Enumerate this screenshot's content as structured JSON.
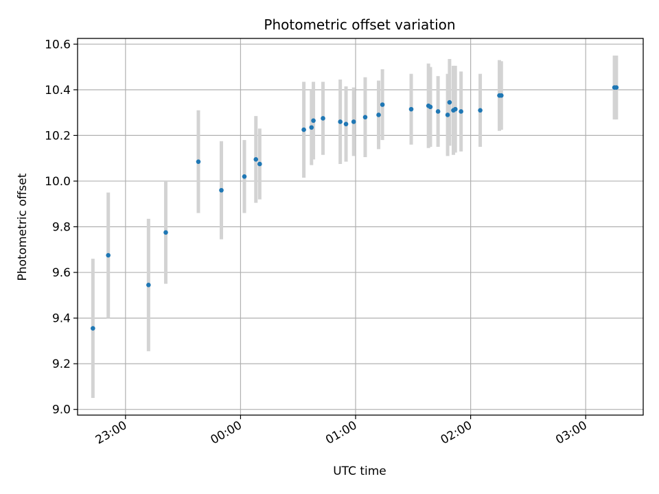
{
  "chart_data": {
    "type": "scatter",
    "title": "Photometric offset variation",
    "xlabel": "UTC time",
    "ylabel": "Photometric offset",
    "x_axis_kind": "time",
    "xlim": [
      "22:35",
      "03:30"
    ],
    "ylim": [
      8.975,
      10.625
    ],
    "x_ticks": [
      "23:00",
      "00:00",
      "01:00",
      "02:00",
      "03:00"
    ],
    "y_ticks": [
      "9.0",
      "9.2",
      "9.4",
      "9.6",
      "9.8",
      "10.0",
      "10.2",
      "10.4",
      "10.6"
    ],
    "grid": true,
    "legend": "none",
    "point_color": "#1f77b4",
    "error_color": "#d3d3d3",
    "points": [
      {
        "x": "22:43",
        "y": 9.355,
        "err": 0.305
      },
      {
        "x": "22:51",
        "y": 9.675,
        "err": 0.275
      },
      {
        "x": "23:12",
        "y": 9.545,
        "err": 0.29
      },
      {
        "x": "23:21",
        "y": 9.775,
        "err": 0.225
      },
      {
        "x": "23:38",
        "y": 10.085,
        "err": 0.225
      },
      {
        "x": "23:50",
        "y": 9.96,
        "err": 0.215
      },
      {
        "x": "00:02",
        "y": 10.02,
        "err": 0.16
      },
      {
        "x": "00:08",
        "y": 10.095,
        "err": 0.19
      },
      {
        "x": "00:10",
        "y": 10.075,
        "err": 0.155
      },
      {
        "x": "00:33",
        "y": 10.225,
        "err": 0.21
      },
      {
        "x": "00:37",
        "y": 10.235,
        "err": 0.165
      },
      {
        "x": "00:38",
        "y": 10.265,
        "err": 0.17
      },
      {
        "x": "00:43",
        "y": 10.275,
        "err": 0.16
      },
      {
        "x": "00:52",
        "y": 10.26,
        "err": 0.185
      },
      {
        "x": "00:55",
        "y": 10.25,
        "err": 0.165
      },
      {
        "x": "00:59",
        "y": 10.26,
        "err": 0.15
      },
      {
        "x": "01:05",
        "y": 10.28,
        "err": 0.175
      },
      {
        "x": "01:12",
        "y": 10.29,
        "err": 0.15
      },
      {
        "x": "01:14",
        "y": 10.335,
        "err": 0.155
      },
      {
        "x": "01:29",
        "y": 10.315,
        "err": 0.155
      },
      {
        "x": "01:38",
        "y": 10.33,
        "err": 0.185
      },
      {
        "x": "01:39",
        "y": 10.325,
        "err": 0.175
      },
      {
        "x": "01:43",
        "y": 10.305,
        "err": 0.155
      },
      {
        "x": "01:48",
        "y": 10.29,
        "err": 0.18
      },
      {
        "x": "01:49",
        "y": 10.345,
        "err": 0.19
      },
      {
        "x": "01:51",
        "y": 10.31,
        "err": 0.195
      },
      {
        "x": "01:52",
        "y": 10.315,
        "err": 0.19
      },
      {
        "x": "01:55",
        "y": 10.305,
        "err": 0.175
      },
      {
        "x": "02:05",
        "y": 10.31,
        "err": 0.16
      },
      {
        "x": "02:15",
        "y": 10.375,
        "err": 0.155
      },
      {
        "x": "02:16",
        "y": 10.375,
        "err": 0.15
      },
      {
        "x": "03:15",
        "y": 10.41,
        "err": 0.14
      },
      {
        "x": "03:16",
        "y": 10.41,
        "err": 0.14
      }
    ]
  }
}
